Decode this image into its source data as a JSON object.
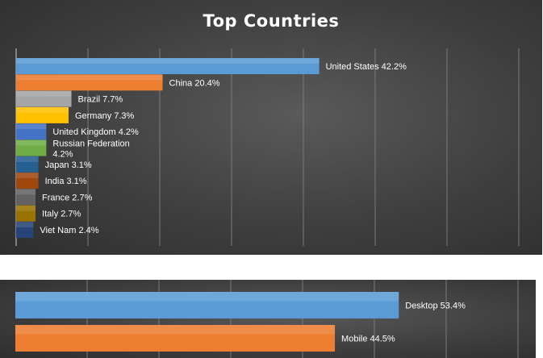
{
  "chart_data": [
    {
      "type": "bar",
      "orientation": "horizontal",
      "title": "Top Countries",
      "categories": [
        "United States",
        "China",
        "Brazil",
        "Germany",
        "United Kingdom",
        "Russian Federation",
        "Japan",
        "India",
        "France",
        "Italy",
        "Viet Nam"
      ],
      "values": [
        42.2,
        20.4,
        7.7,
        7.3,
        4.2,
        4.2,
        3.1,
        3.1,
        2.7,
        2.7,
        2.4
      ],
      "labels": [
        "United States 42.2%",
        "China 20.4%",
        "Brazil 7.7%",
        "Germany 7.3%",
        "United Kingdom 4.2%",
        "Russian Federation 4.2%",
        "Japan 3.1%",
        "India 3.1%",
        "France 2.7%",
        "Italy 2.7%",
        "Viet Nam 2.4%"
      ],
      "colors": [
        "#5b9bd5",
        "#ed7d31",
        "#a5a5a5",
        "#ffc000",
        "#4472c4",
        "#70ad47",
        "#255e91",
        "#9e480e",
        "#636363",
        "#997300",
        "#264478"
      ],
      "xlim": [
        0,
        70
      ],
      "grid": true,
      "legend": "none"
    },
    {
      "type": "bar",
      "orientation": "horizontal",
      "title": "",
      "categories": [
        "Desktop",
        "Mobile"
      ],
      "values": [
        53.4,
        44.5
      ],
      "labels": [
        "Desktop 53.4%",
        "Mobile 44.5%"
      ],
      "colors": [
        "#5b9bd5",
        "#ed7d31"
      ],
      "xlim": [
        0,
        70
      ],
      "grid": true,
      "legend": "none"
    }
  ]
}
